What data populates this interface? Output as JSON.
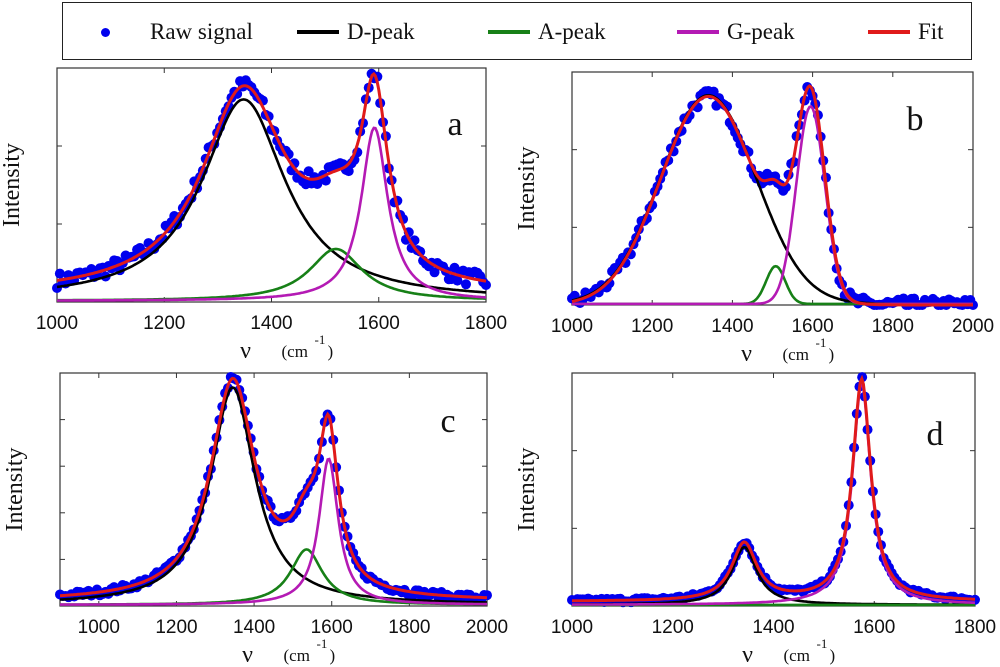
{
  "legend": {
    "items": [
      {
        "label": "Raw signal",
        "kind": "marker",
        "color": "#0000ee"
      },
      {
        "label": "D-peak",
        "kind": "line",
        "color": "#000000"
      },
      {
        "label": "A-peak",
        "kind": "line",
        "color": "#178017"
      },
      {
        "label": "G-peak",
        "kind": "line",
        "color": "#b41ab4"
      },
      {
        "label": "Fit",
        "kind": "line",
        "color": "#e01a1a"
      }
    ]
  },
  "chart_data": [
    {
      "type": "line",
      "panel": "a",
      "xlabel": "ν (cm-1)",
      "ylabel": "Intensity",
      "xlim": [
        1000,
        1800
      ],
      "xticks": [
        1000,
        1200,
        1400,
        1600,
        1800
      ],
      "ylim": [
        0,
        1.08
      ],
      "yticks_count": 2,
      "series": [
        {
          "name": "D-peak",
          "center": 1348,
          "amplitude": 0.93,
          "hwhm": 95
        },
        {
          "name": "A-peak",
          "center": 1520,
          "amplitude": 0.24,
          "hwhm": 60
        },
        {
          "name": "G-peak",
          "center": 1592,
          "amplitude": 0.8,
          "hwhm": 30
        }
      ],
      "baseline": 0.03,
      "raw_noise": 0.035
    },
    {
      "type": "line",
      "panel": "b",
      "xlabel": "ν (cm-1)",
      "ylabel": "Intensity",
      "xlim": [
        1000,
        2000
      ],
      "xticks": [
        1000,
        1200,
        1400,
        1600,
        1800,
        2000
      ],
      "ylim": [
        0,
        1.05
      ],
      "yticks_count": 2,
      "series": [
        {
          "name": "D-peak",
          "center": 1340,
          "amplitude": 0.94,
          "hwhm": 140,
          "shape": "gaussian"
        },
        {
          "name": "A-peak",
          "center": 1508,
          "amplitude": 0.17,
          "hwhm": 28,
          "shape": "gaussian"
        },
        {
          "name": "G-peak",
          "center": 1595,
          "amplitude": 0.89,
          "hwhm": 42,
          "shape": "gaussian"
        }
      ],
      "baseline": 0.0,
      "raw_noise": 0.03
    },
    {
      "type": "line",
      "panel": "c",
      "xlabel": "ν (cm-1)",
      "ylabel": "Intensity",
      "xlim": [
        900,
        2000
      ],
      "xticks": [
        1000,
        1200,
        1400,
        1600,
        1800,
        2000
      ],
      "ylim": [
        0,
        1.05
      ],
      "yticks_count": 4,
      "series": [
        {
          "name": "D-peak",
          "center": 1345,
          "amplitude": 0.98,
          "hwhm": 70
        },
        {
          "name": "A-peak",
          "center": 1535,
          "amplitude": 0.25,
          "hwhm": 50
        },
        {
          "name": "G-peak",
          "center": 1592,
          "amplitude": 0.66,
          "hwhm": 30
        }
      ],
      "baseline": 0.02,
      "raw_noise": 0.015
    },
    {
      "type": "line",
      "panel": "d",
      "xlabel": "ν (cm-1)",
      "ylabel": "Intensity",
      "xlim": [
        1000,
        1800
      ],
      "xticks": [
        1000,
        1200,
        1400,
        1600,
        1800
      ],
      "ylim": [
        0,
        1.05
      ],
      "yticks_count": 2,
      "series": [
        {
          "name": "D-peak",
          "center": 1342,
          "amplitude": 0.26,
          "hwhm": 30
        },
        {
          "name": "A-peak",
          "center": 1500,
          "amplitude": 0.0,
          "hwhm": 40
        },
        {
          "name": "G-peak",
          "center": 1575,
          "amplitude": 1.0,
          "hwhm": 22
        }
      ],
      "baseline": 0.02,
      "raw_noise": 0.01
    }
  ]
}
